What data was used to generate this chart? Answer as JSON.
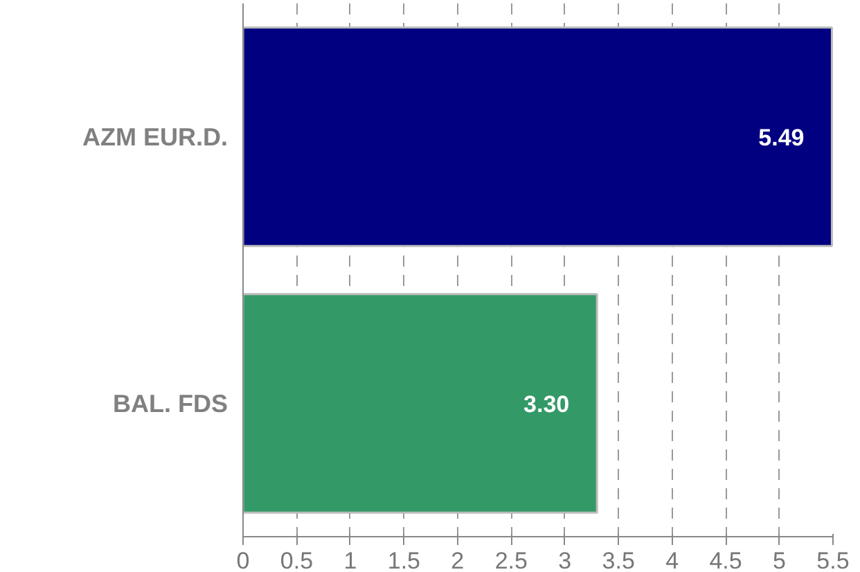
{
  "chart_data": {
    "type": "bar",
    "orientation": "horizontal",
    "categories": [
      "AZM EUR.D.",
      "BAL. FDS"
    ],
    "values": [
      5.49,
      3.3
    ],
    "colors": [
      "#000080",
      "#339966"
    ],
    "value_labels": [
      "5.49",
      "3.30"
    ],
    "xlim": [
      0,
      5.5
    ],
    "xticks": [
      0,
      0.5,
      1,
      1.5,
      2,
      2.5,
      3,
      3.5,
      4,
      4.5,
      5,
      5.5
    ],
    "grid": "x"
  }
}
